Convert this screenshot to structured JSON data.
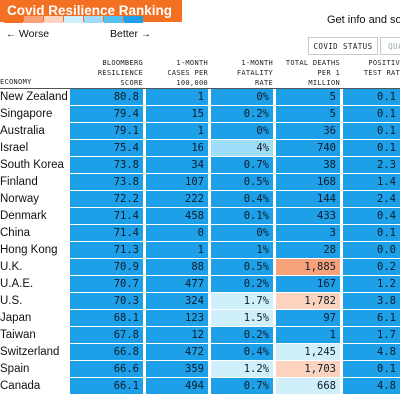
{
  "title": "Covid Resilience Ranking",
  "info_text": "Get info and sort c",
  "scale": {
    "worse_label": "Worse",
    "better_label": "Better",
    "colors": [
      "#f36f21",
      "#f7a27a",
      "#fbd3bf",
      "#cfeffb",
      "#9fdcf7",
      "#55bff0",
      "#1ea0e8"
    ]
  },
  "tabs": [
    {
      "label": "COVID STATUS",
      "active": true
    },
    {
      "label": "QUA",
      "active": false
    }
  ],
  "columns": {
    "economy": "ECONOMY",
    "score": "BLOOMBERG\nRESILIENCE\nSCORE",
    "cases": "1-MONTH\nCASES PER\n100,000",
    "fatality": "1-MONTH\nFATALITY\nRATE",
    "deaths": "TOTAL DEATHS\nPER 1\nMILLION",
    "positive": "POSITIV\nTEST RAT"
  },
  "rows": [
    {
      "country": "New Zealand",
      "score": "80.8",
      "cases": "1",
      "fatality": "0%",
      "deaths": "5",
      "positive": "0.1"
    },
    {
      "country": "Singapore",
      "score": "79.4",
      "cases": "15",
      "fatality": "0.2%",
      "deaths": "5",
      "positive": "0.1"
    },
    {
      "country": "Australia",
      "score": "79.1",
      "cases": "1",
      "fatality": "0%",
      "deaths": "36",
      "positive": "0.1"
    },
    {
      "country": "Israel",
      "score": "75.4",
      "cases": "16",
      "fatality": "4%",
      "deaths": "740",
      "positive": "0.1"
    },
    {
      "country": "South Korea",
      "score": "73.8",
      "cases": "34",
      "fatality": "0.7%",
      "deaths": "38",
      "positive": "2.3"
    },
    {
      "country": "Finland",
      "score": "73.8",
      "cases": "107",
      "fatality": "0.5%",
      "deaths": "168",
      "positive": "1.4"
    },
    {
      "country": "Norway",
      "score": "72.2",
      "cases": "222",
      "fatality": "0.4%",
      "deaths": "144",
      "positive": "2.4"
    },
    {
      "country": "Denmark",
      "score": "71.4",
      "cases": "458",
      "fatality": "0.1%",
      "deaths": "433",
      "positive": "0.4"
    },
    {
      "country": "China",
      "score": "71.4",
      "cases": "0",
      "fatality": "0%",
      "deaths": "3",
      "positive": "0.1"
    },
    {
      "country": "Hong Kong",
      "score": "71.3",
      "cases": "1",
      "fatality": "1%",
      "deaths": "28",
      "positive": "0.0"
    },
    {
      "country": "U.K.",
      "score": "70.9",
      "cases": "88",
      "fatality": "0.5%",
      "deaths": "1,885",
      "positive": "0.2"
    },
    {
      "country": "U.A.E.",
      "score": "70.7",
      "cases": "477",
      "fatality": "0.2%",
      "deaths": "167",
      "positive": "1.2"
    },
    {
      "country": "U.S.",
      "score": "70.3",
      "cases": "324",
      "fatality": "1.7%",
      "deaths": "1,782",
      "positive": "3.8"
    },
    {
      "country": "Japan",
      "score": "68.1",
      "cases": "123",
      "fatality": "1.5%",
      "deaths": "97",
      "positive": "6.1"
    },
    {
      "country": "Taiwan",
      "score": "67.8",
      "cases": "12",
      "fatality": "0.2%",
      "deaths": "1",
      "positive": "1.7"
    },
    {
      "country": "Switzerland",
      "score": "66.8",
      "cases": "472",
      "fatality": "0.4%",
      "deaths": "1,245",
      "positive": "4.8"
    },
    {
      "country": "Spain",
      "score": "66.6",
      "cases": "359",
      "fatality": "1.2%",
      "deaths": "1,703",
      "positive": "0.1"
    },
    {
      "country": "Canada",
      "score": "66.1",
      "cases": "494",
      "fatality": "0.7%",
      "deaths": "668",
      "positive": "4.8"
    }
  ],
  "cell_colors": {
    "score": "#1ea0e8",
    "default": "#1ea0e8",
    "light_blue": "#9fdcf7",
    "lighter_blue": "#cfeffb",
    "orange_strong": "#f7a27a",
    "orange_light": "#fbd3bf"
  },
  "highlights": {
    "3.fatality": "light_blue",
    "10.deaths": "orange_strong",
    "12.fatality": "lighter_blue",
    "12.deaths": "orange_light",
    "13.fatality": "lighter_blue",
    "15.deaths": "lighter_blue",
    "16.fatality": "lighter_blue",
    "16.deaths": "orange_light",
    "17.deaths": "lighter_blue"
  }
}
